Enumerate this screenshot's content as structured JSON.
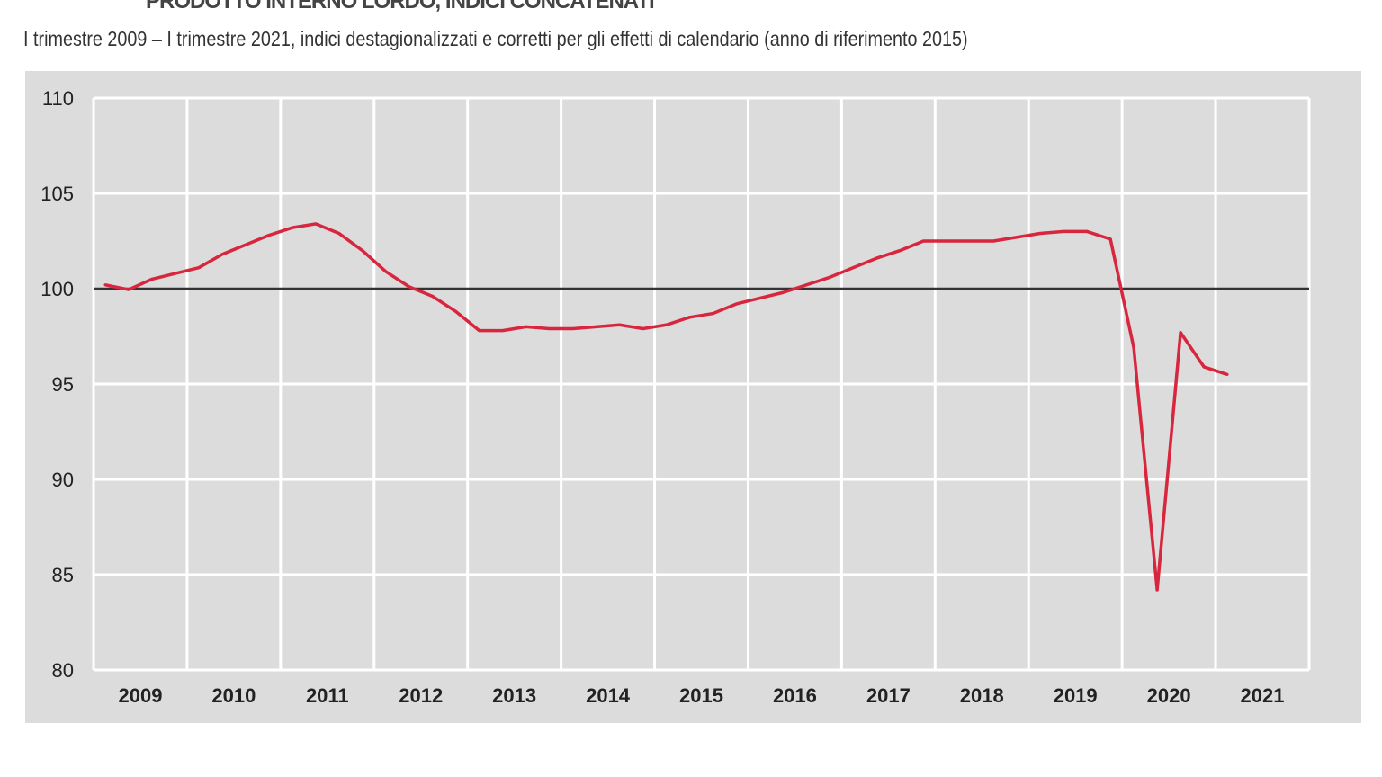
{
  "chart_data": {
    "type": "line",
    "title": "PRODOTTO INTERNO LORDO, INDICI CONCATENATI",
    "subtitle": "I trimestre  2009 – I trimestre  2021, indici destagionalizzati  e corretti  per gli effetti  di calendario (anno di riferimento  2015)",
    "xlabel": "",
    "ylabel": "",
    "ylim": [
      80,
      110
    ],
    "yticks": [
      "80",
      "85",
      "90",
      "95",
      "100",
      "105",
      "110"
    ],
    "xtick_labels": [
      "2009",
      "2010",
      "2011",
      "2012",
      "2013",
      "2014",
      "2015",
      "2016",
      "2017",
      "2018",
      "2019",
      "2020",
      "2021"
    ],
    "grid": true,
    "reference_line": 100,
    "colors": {
      "series": "#d7263d",
      "background": "#dcdcdc",
      "grid": "#ffffff",
      "reference": "#333333"
    },
    "x": [
      "2009Q1",
      "2009Q2",
      "2009Q3",
      "2009Q4",
      "2010Q1",
      "2010Q2",
      "2010Q3",
      "2010Q4",
      "2011Q1",
      "2011Q2",
      "2011Q3",
      "2011Q4",
      "2012Q1",
      "2012Q2",
      "2012Q3",
      "2012Q4",
      "2013Q1",
      "2013Q2",
      "2013Q3",
      "2013Q4",
      "2014Q1",
      "2014Q2",
      "2014Q3",
      "2014Q4",
      "2015Q1",
      "2015Q2",
      "2015Q3",
      "2015Q4",
      "2016Q1",
      "2016Q2",
      "2016Q3",
      "2016Q4",
      "2017Q1",
      "2017Q2",
      "2017Q3",
      "2017Q4",
      "2018Q1",
      "2018Q2",
      "2018Q3",
      "2018Q4",
      "2019Q1",
      "2019Q2",
      "2019Q3",
      "2019Q4",
      "2020Q1",
      "2020Q2",
      "2020Q3",
      "2020Q4",
      "2021Q1"
    ],
    "series": [
      {
        "values": [
          100.2,
          99.95,
          100.5,
          100.8,
          101.1,
          101.8,
          102.3,
          102.8,
          103.2,
          103.4,
          102.9,
          102.0,
          100.9,
          100.1,
          99.6,
          98.8,
          97.8,
          97.8,
          98.0,
          97.9,
          97.9,
          98.0,
          98.1,
          97.9,
          98.1,
          98.5,
          98.7,
          99.2,
          99.5,
          99.8,
          100.2,
          100.6,
          101.1,
          101.6,
          102.0,
          102.5,
          102.5,
          102.5,
          102.5,
          102.7,
          102.9,
          103.0,
          103.0,
          102.6,
          96.9,
          84.2,
          97.7,
          95.9,
          95.5
        ]
      }
    ]
  }
}
